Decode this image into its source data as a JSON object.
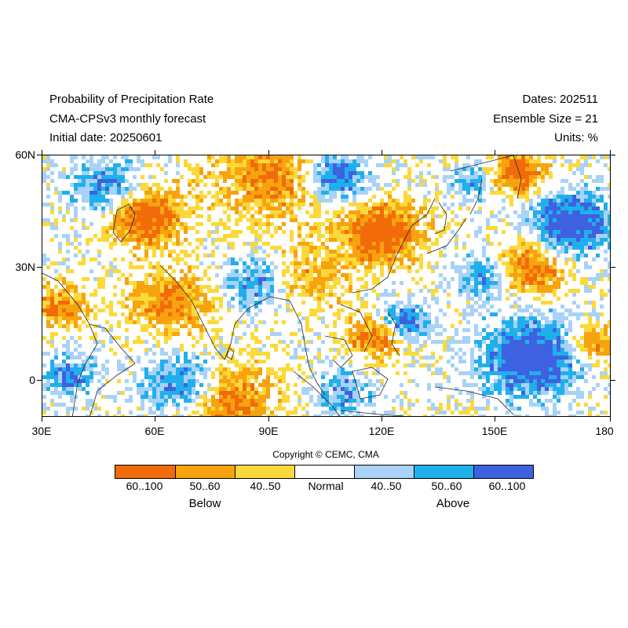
{
  "header": {
    "title": "Probability of Precipitation Rate",
    "model": "CMA-CPSv3 monthly forecast",
    "initial": "Initial date: 20250601",
    "dates": "Dates: 202511",
    "ensemble": "Ensemble Size = 21",
    "units": "Units: %"
  },
  "map": {
    "y_ticks": [
      "60N",
      "30N",
      "0"
    ],
    "x_ticks": [
      "30E",
      "60E",
      "90E",
      "120E",
      "150E",
      "180"
    ],
    "lon_range": [
      30,
      180
    ],
    "lat_range": [
      -10,
      60
    ]
  },
  "copyright": "Copyright © CEMC, CMA",
  "legend": {
    "items": [
      {
        "label": "60..100",
        "color": "#f26b0a"
      },
      {
        "label": "50..60",
        "color": "#f7a30f"
      },
      {
        "label": "40..50",
        "color": "#fcd93a"
      },
      {
        "label": "Normal",
        "color": "#ffffff"
      },
      {
        "label": "40..50",
        "color": "#a8d2f7"
      },
      {
        "label": "50..60",
        "color": "#1fb0ec"
      },
      {
        "label": "60..100",
        "color": "#3e61e0"
      }
    ],
    "below": "Below",
    "above": "Above"
  }
}
